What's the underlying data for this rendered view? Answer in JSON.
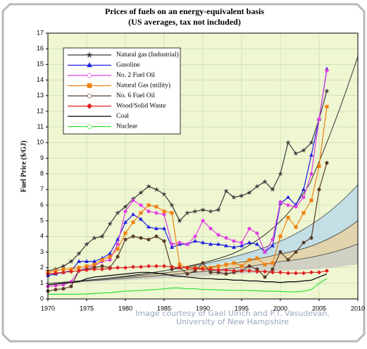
{
  "chart_data": {
    "type": "line",
    "title": "Prices of fuels on an energy-equivalent basis",
    "subtitle": "(US averages, tax not included)",
    "y_label": "Fuel Price ($/GJ)",
    "credit": [
      "Image courtesy of Gael Ulrich and P.T. Vasudevan,",
      "University of New Hampshire"
    ],
    "x": [
      1970,
      1971,
      1972,
      1973,
      1974,
      1975,
      1976,
      1977,
      1978,
      1979,
      1980,
      1981,
      1982,
      1983,
      1984,
      1985,
      1986,
      1987,
      1988,
      1989,
      1990,
      1991,
      1992,
      1993,
      1994,
      1995,
      1996,
      1997,
      1998,
      1999,
      2000,
      2001,
      2002,
      2003,
      2004,
      2005,
      2006
    ],
    "xlim": [
      1970,
      2010
    ],
    "xticks": [
      1970,
      1975,
      1980,
      1985,
      1990,
      1995,
      2000,
      2005,
      2010
    ],
    "ylim": [
      0,
      17
    ],
    "yticks": [
      0,
      1,
      2,
      3,
      4,
      5,
      6,
      7,
      8,
      9,
      10,
      11,
      12,
      13,
      14,
      15,
      16,
      17
    ],
    "grid": true,
    "legend": "upper left",
    "series": [
      {
        "name": "Natural gas (Industrial)",
        "color": "#3a3a3a",
        "marker": "star",
        "values": [
          1.8,
          1.9,
          2.1,
          2.4,
          2.9,
          3.5,
          3.9,
          4.0,
          4.8,
          5.5,
          5.9,
          6.4,
          6.8,
          7.2,
          7.0,
          6.7,
          6.0,
          5.0,
          5.5,
          5.6,
          5.7,
          5.6,
          5.7,
          6.9,
          6.5,
          6.6,
          6.8,
          7.2,
          7.5,
          7.0,
          8.0,
          10.0,
          9.3,
          9.5,
          10.0,
          11.5,
          13.3
        ]
      },
      {
        "name": "Gasoline",
        "color": "#1f1fe0",
        "marker": "triangle",
        "values": [
          1.5,
          1.6,
          1.7,
          1.8,
          2.4,
          2.4,
          2.4,
          2.6,
          2.9,
          3.8,
          4.9,
          5.4,
          5.1,
          4.6,
          4.5,
          4.5,
          3.3,
          3.5,
          3.5,
          3.7,
          3.6,
          3.5,
          3.5,
          3.4,
          3.3,
          3.4,
          3.6,
          3.5,
          3.0,
          3.4,
          6.1,
          6.5,
          6.0,
          7.0,
          9.2,
          11.5,
          14.7
        ]
      },
      {
        "name": "No. 2 Fuel Oil",
        "color": "#e040e0",
        "marker": "circle",
        "values": [
          0.8,
          0.85,
          0.9,
          1.1,
          1.8,
          2.0,
          2.1,
          2.4,
          2.5,
          3.5,
          5.6,
          6.3,
          6.0,
          5.6,
          5.5,
          5.4,
          3.5,
          3.6,
          3.5,
          4.0,
          5.0,
          4.5,
          4.1,
          3.9,
          3.7,
          3.6,
          4.5,
          4.2,
          3.0,
          3.8,
          6.2,
          6.0,
          5.9,
          6.5,
          8.0,
          11.5,
          14.6
        ]
      },
      {
        "name": "Natural Gas (utility)",
        "color": "#f08010",
        "marker": "square",
        "values": [
          1.7,
          1.8,
          1.9,
          1.9,
          2.0,
          2.1,
          2.2,
          2.5,
          2.7,
          3.2,
          4.2,
          4.9,
          5.5,
          6.0,
          5.9,
          5.6,
          5.5,
          2.2,
          2.0,
          2.0,
          2.0,
          2.0,
          2.1,
          2.2,
          2.3,
          2.1,
          2.5,
          2.6,
          2.2,
          2.3,
          4.0,
          5.2,
          4.6,
          5.5,
          6.3,
          8.5,
          12.3
        ]
      },
      {
        "name": "No. 6 Fuel Oil",
        "color": "#5a3a28",
        "marker": "circle",
        "values": [
          0.5,
          0.6,
          0.65,
          0.8,
          1.8,
          1.9,
          2.0,
          2.1,
          2.0,
          2.7,
          3.8,
          4.0,
          3.9,
          3.8,
          4.0,
          3.7,
          1.9,
          2.0,
          1.6,
          1.8,
          2.3,
          1.7,
          1.7,
          1.6,
          1.7,
          1.8,
          2.1,
          1.9,
          1.4,
          1.9,
          3.0,
          2.5,
          3.0,
          3.6,
          3.9,
          7.0,
          8.7
        ]
      },
      {
        "name": "Wood/Solid Waste",
        "color": "#e02020",
        "marker": "diamond",
        "values": [
          1.6,
          1.65,
          1.7,
          1.75,
          1.8,
          1.85,
          1.9,
          1.9,
          1.95,
          2.0,
          2.0,
          2.05,
          2.05,
          2.1,
          2.1,
          2.1,
          2.05,
          2.0,
          2.0,
          1.95,
          1.9,
          1.9,
          1.85,
          1.85,
          1.8,
          1.8,
          1.8,
          1.75,
          1.75,
          1.7,
          1.7,
          1.65,
          1.65,
          1.65,
          1.7,
          1.7,
          1.8
        ]
      },
      {
        "name": "Coal",
        "color": "#000000",
        "marker": null,
        "values": [
          0.9,
          0.95,
          1.0,
          1.05,
          1.1,
          1.3,
          1.4,
          1.45,
          1.5,
          1.55,
          1.6,
          1.65,
          1.7,
          1.7,
          1.65,
          1.6,
          1.5,
          1.45,
          1.4,
          1.35,
          1.3,
          1.3,
          1.25,
          1.25,
          1.2,
          1.2,
          1.15,
          1.15,
          1.1,
          1.1,
          1.05,
          1.1,
          1.1,
          1.15,
          1.2,
          1.4,
          1.6
        ]
      },
      {
        "name": "Nuclear",
        "color": "#30e030",
        "marker": null,
        "values": [
          0.3,
          0.3,
          0.3,
          0.3,
          0.3,
          0.32,
          0.35,
          0.38,
          0.4,
          0.45,
          0.5,
          0.52,
          0.55,
          0.58,
          0.6,
          0.65,
          0.7,
          0.7,
          0.65,
          0.65,
          0.6,
          0.6,
          0.58,
          0.56,
          0.55,
          0.55,
          0.54,
          0.52,
          0.5,
          0.5,
          0.48,
          0.46,
          0.45,
          0.5,
          0.6,
          1.0,
          1.3
        ]
      }
    ]
  }
}
